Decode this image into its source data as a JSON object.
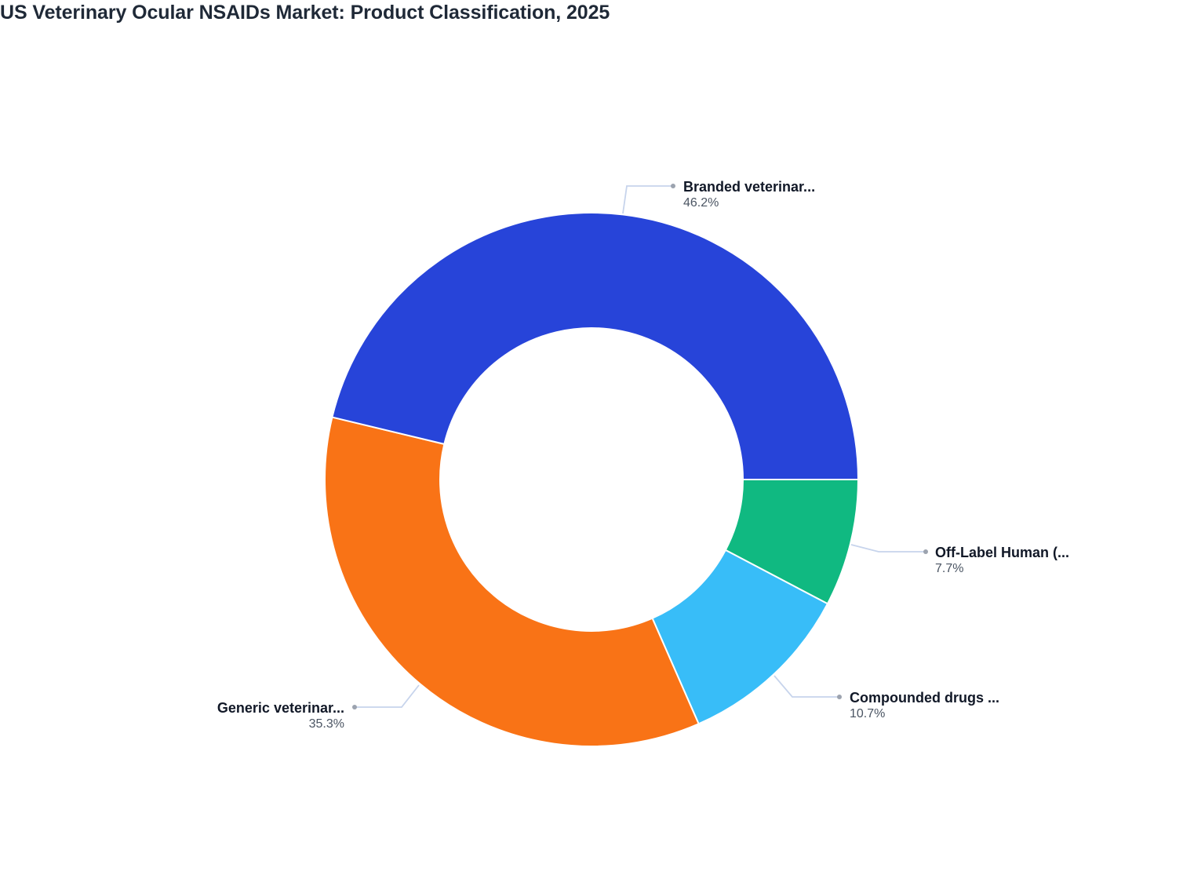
{
  "title": "US Veterinary Ocular NSAIDs Market: Product Classification, 2025",
  "chart_data": {
    "type": "pie",
    "subtype": "donut",
    "title": "US Veterinary Ocular NSAIDs Market: Product Classification, 2025",
    "categories": [
      "Branded veterinar...",
      "Generic veterinar...",
      "Compounded drugs ...",
      "Off-Label Human (..."
    ],
    "values": [
      46.2,
      35.3,
      10.7,
      7.7
    ],
    "unit": "%",
    "colors": [
      "#2744d9",
      "#f97316",
      "#38bdf8",
      "#10b981"
    ],
    "legend": "none (outside labels with leader lines)",
    "slices": [
      {
        "label": "Branded veterinar...",
        "value": 46.2,
        "display": "46.2%",
        "color": "#2744d9"
      },
      {
        "label": "Generic veterinar...",
        "value": 35.3,
        "display": "35.3%",
        "color": "#f97316"
      },
      {
        "label": "Compounded drugs ...",
        "value": 10.7,
        "display": "10.7%",
        "color": "#38bdf8"
      },
      {
        "label": "Off-Label Human (...",
        "value": 7.7,
        "display": "7.7%",
        "color": "#10b981"
      }
    ]
  },
  "labels": {
    "branded": {
      "name": "Branded veterinar...",
      "value": "46.2%"
    },
    "generic": {
      "name": "Generic veterinar...",
      "value": "35.3%"
    },
    "compounded": {
      "name": "Compounded drugs ...",
      "value": "10.7%"
    },
    "offlabel": {
      "name": "Off-Label Human (...",
      "value": "7.7%"
    }
  }
}
